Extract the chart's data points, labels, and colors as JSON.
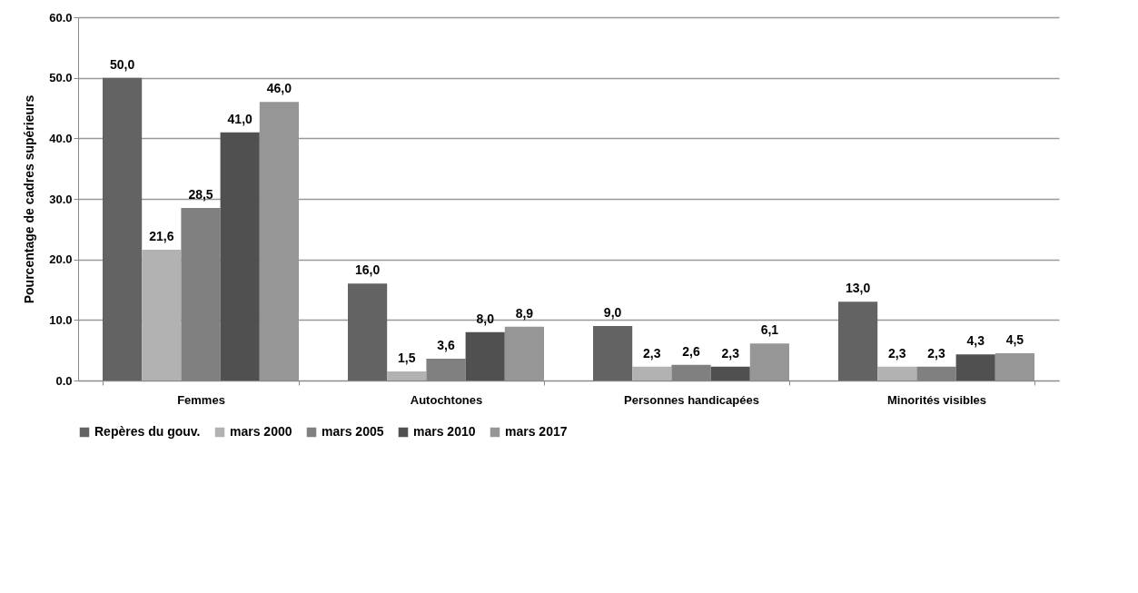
{
  "chart_data": {
    "type": "bar",
    "ylabel": "Pourcentage de cadres supérieurs",
    "categories": [
      "Femmes",
      "Autochtones",
      "Personnes handicapées",
      "Minorités visibles"
    ],
    "series": [
      {
        "name": "Repères du gouv.",
        "color": "#636363",
        "values": [
          50.0,
          16.0,
          9.0,
          13.0
        ],
        "value_labels": [
          "50,0",
          "16,0",
          "9,0",
          "13,0"
        ]
      },
      {
        "name": "mars 2000",
        "color": "#b2b2b2",
        "values": [
          21.6,
          1.5,
          2.3,
          2.3
        ],
        "value_labels": [
          "21,6",
          "1,5",
          "2,3",
          "2,3"
        ]
      },
      {
        "name": "mars 2005",
        "color": "#808080",
        "values": [
          28.5,
          3.6,
          2.6,
          2.3
        ],
        "value_labels": [
          "28,5",
          "3,6",
          "2,6",
          "2,3"
        ]
      },
      {
        "name": "mars 2010",
        "color": "#505050",
        "values": [
          41.0,
          8.0,
          2.3,
          4.3
        ],
        "value_labels": [
          "41,0",
          "8,0",
          "2,3",
          "4,3"
        ]
      },
      {
        "name": "mars 2017",
        "color": "#969696",
        "values": [
          46.0,
          8.9,
          6.1,
          4.5
        ],
        "value_labels": [
          "46,0",
          "8,9",
          "6,1",
          "4,5"
        ]
      }
    ],
    "ylim": [
      0,
      60
    ],
    "yticks": [
      {
        "value": 0,
        "label": "0.0"
      },
      {
        "value": 10,
        "label": "10.0"
      },
      {
        "value": 20,
        "label": "20.0"
      },
      {
        "value": 30,
        "label": "30.0"
      },
      {
        "value": 40,
        "label": "40.0"
      },
      {
        "value": 50,
        "label": "50.0"
      },
      {
        "value": 60,
        "label": "60.0"
      }
    ],
    "grid": "y",
    "legend": "bottom"
  }
}
